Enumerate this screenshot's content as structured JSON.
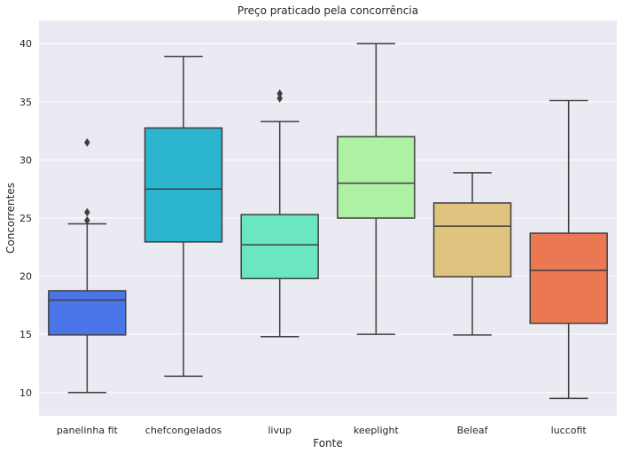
{
  "chart_data": {
    "type": "box",
    "title": "Preço praticado pela concorrência",
    "xlabel": "Fonte",
    "ylabel": "Concorrentes",
    "ylim": [
      8,
      42
    ],
    "yticks": [
      10,
      15,
      20,
      25,
      30,
      35,
      40
    ],
    "grid": true,
    "categories": [
      "panelinha fit",
      "chefcongelados",
      "livup",
      "keeplight",
      "Beleaf",
      "luccofit"
    ],
    "boxes": [
      {
        "category": "panelinha fit",
        "color": "#4a75e8",
        "whisker_low": 10.0,
        "q1": 14.95,
        "median": 17.95,
        "q3": 18.75,
        "whisker_high": 24.5,
        "outliers": [
          24.8,
          25.5,
          31.5
        ]
      },
      {
        "category": "chefcongelados",
        "color": "#2bb5cf",
        "whisker_low": 11.4,
        "q1": 22.95,
        "median": 27.5,
        "q3": 32.75,
        "whisker_high": 38.9,
        "outliers": []
      },
      {
        "category": "livup",
        "color": "#6be6c2",
        "whisker_low": 14.8,
        "q1": 19.8,
        "median": 22.7,
        "q3": 25.3,
        "whisker_high": 33.3,
        "outliers": [
          35.3,
          35.7
        ]
      },
      {
        "category": "keeplight",
        "color": "#aef0a4",
        "whisker_low": 15.0,
        "q1": 25.0,
        "median": 28.0,
        "q3": 32.0,
        "whisker_high": 40.0,
        "outliers": []
      },
      {
        "category": "Beleaf",
        "color": "#dfc37e",
        "whisker_low": 14.95,
        "q1": 19.95,
        "median": 24.3,
        "q3": 26.3,
        "whisker_high": 28.9,
        "outliers": []
      },
      {
        "category": "luccofit",
        "color": "#e97853",
        "whisker_low": 9.5,
        "q1": 15.95,
        "median": 20.5,
        "q3": 23.7,
        "whisker_high": 35.1,
        "outliers": []
      }
    ],
    "colors": {
      "background": "#eaeaf2",
      "grid": "#ffffff",
      "line": "#3f3f3f"
    }
  }
}
